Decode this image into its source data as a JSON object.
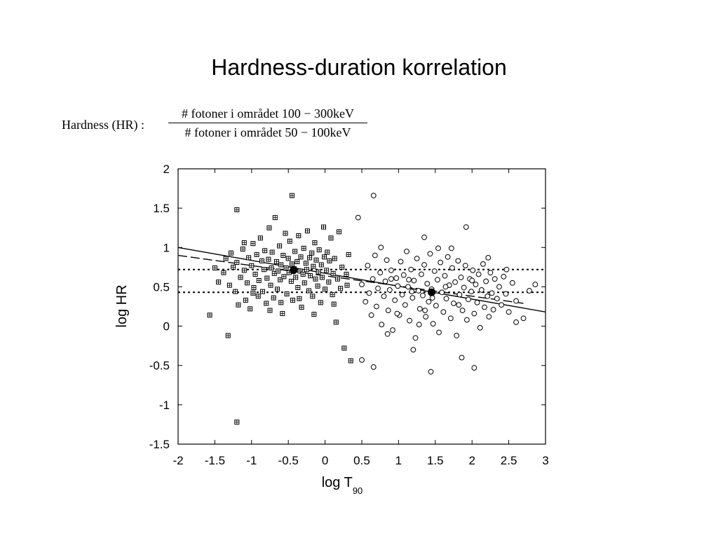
{
  "slide": {
    "title": "Hardness-duration korrelation"
  },
  "formula": {
    "label": "Hardness (HR) :",
    "numerator": "#  fotoner i området 100 − 300keV",
    "denominator": "#  fotoner i området 50 − 100keV"
  },
  "chart_data": {
    "type": "scatter",
    "title": "",
    "xlabel": "log T",
    "xlabel_subscript": "90",
    "ylabel": "log HR",
    "xlim": [
      -2,
      3
    ],
    "ylim": [
      -1.5,
      2
    ],
    "xticks": [
      -2,
      -1.5,
      -1,
      -0.5,
      0,
      0.5,
      1,
      1.5,
      2,
      2.5,
      3
    ],
    "yticks": [
      -1.5,
      -1,
      -0.5,
      0,
      0.5,
      1,
      1.5,
      2
    ],
    "xtick_labels": [
      "-2",
      "-1.5",
      "-1",
      "-0.5",
      "0",
      "0.5",
      "1",
      "1.5",
      "2",
      "2.5",
      "3"
    ],
    "ytick_labels": [
      "-1.5",
      "-1",
      "-0.5",
      "0",
      "0.5",
      "1",
      "1.5",
      "2"
    ],
    "grid": false,
    "series": [
      {
        "marker": "boxed-cross",
        "points": [
          [
            -1.57,
            0.14
          ],
          [
            -1.32,
            -0.12
          ],
          [
            -1.2,
            -1.22
          ],
          [
            -1.2,
            1.48
          ],
          [
            -0.45,
            1.66
          ],
          [
            -1.5,
            0.74
          ],
          [
            -1.45,
            0.56
          ],
          [
            -1.38,
            0.68
          ],
          [
            -1.35,
            0.86
          ],
          [
            -1.3,
            0.52
          ],
          [
            -1.28,
            0.93
          ],
          [
            -1.25,
            0.75
          ],
          [
            -1.22,
            0.44
          ],
          [
            -1.2,
            0.81
          ],
          [
            -1.18,
            0.27
          ],
          [
            -1.15,
            0.62
          ],
          [
            -1.12,
            0.98
          ],
          [
            -1.1,
            0.71
          ],
          [
            -1.08,
            0.33
          ],
          [
            -1.06,
            0.55
          ],
          [
            -1.04,
            0.87
          ],
          [
            -1.02,
            0.22
          ],
          [
            -1.0,
            0.77
          ],
          [
            -0.98,
            1.05
          ],
          [
            -0.97,
            0.49
          ],
          [
            -0.95,
            0.66
          ],
          [
            -0.93,
            0.91
          ],
          [
            -0.91,
            0.38
          ],
          [
            -0.9,
            0.58
          ],
          [
            -0.88,
            1.12
          ],
          [
            -0.86,
            0.83
          ],
          [
            -0.85,
            0.44
          ],
          [
            -0.83,
            0.72
          ],
          [
            -0.82,
            0.96
          ],
          [
            -0.8,
            0.29
          ],
          [
            -0.79,
            0.61
          ],
          [
            -0.77,
            0.85
          ],
          [
            -0.76,
            1.25
          ],
          [
            -0.74,
            0.52
          ],
          [
            -0.73,
            0.74
          ],
          [
            -0.72,
            0.94
          ],
          [
            -0.7,
            0.36
          ],
          [
            -0.69,
            0.67
          ],
          [
            -0.68,
            1.38
          ],
          [
            -0.66,
            0.82
          ],
          [
            -0.65,
            0.47
          ],
          [
            -0.64,
            0.7
          ],
          [
            -0.62,
            1.02
          ],
          [
            -0.61,
            0.59
          ],
          [
            -0.6,
            0.78
          ],
          [
            -0.58,
            0.16
          ],
          [
            -0.57,
            0.9
          ],
          [
            -0.56,
            0.63
          ],
          [
            -0.54,
            1.18
          ],
          [
            -0.53,
            0.74
          ],
          [
            -0.52,
            0.41
          ],
          [
            -0.5,
            0.86
          ],
          [
            -0.49,
            0.68
          ],
          [
            -0.48,
            1.08
          ],
          [
            -0.46,
            0.57
          ],
          [
            -0.45,
            0.79
          ],
          [
            -0.44,
            0.33
          ],
          [
            -0.42,
            0.73
          ],
          [
            -0.41,
            0.95
          ],
          [
            -0.4,
            0.62
          ],
          [
            -0.38,
            0.82
          ],
          [
            -0.37,
            0.49
          ],
          [
            -0.36,
            1.15
          ],
          [
            -0.34,
            0.7
          ],
          [
            -0.33,
            0.88
          ],
          [
            -0.32,
            0.24
          ],
          [
            -0.3,
            0.66
          ],
          [
            -0.29,
            0.99
          ],
          [
            -0.28,
            0.55
          ],
          [
            -0.26,
            0.8
          ],
          [
            -0.25,
            0.72
          ],
          [
            -0.24,
            1.21
          ],
          [
            -0.22,
            0.45
          ],
          [
            -0.21,
            0.87
          ],
          [
            -0.2,
            0.64
          ],
          [
            -0.18,
            0.93
          ],
          [
            -0.17,
            0.38
          ],
          [
            -0.16,
            0.76
          ],
          [
            -0.14,
            1.06
          ],
          [
            -0.13,
            0.6
          ],
          [
            -0.12,
            0.84
          ],
          [
            -0.1,
            0.51
          ],
          [
            -0.09,
            0.69
          ],
          [
            -0.08,
            0.97
          ],
          [
            -0.06,
            0.3
          ],
          [
            -0.05,
            0.78
          ],
          [
            -0.04,
            0.62
          ],
          [
            -0.02,
            1.26
          ],
          [
            -0.01,
            0.88
          ],
          [
            0.0,
            0.47
          ],
          [
            0.02,
            0.71
          ],
          [
            0.03,
            0.94
          ],
          [
            0.05,
            0.56
          ],
          [
            0.06,
            0.83
          ],
          [
            0.08,
            1.12
          ],
          [
            0.1,
            0.4
          ],
          [
            0.11,
            0.67
          ],
          [
            0.13,
            0.86
          ],
          [
            0.15,
            0.05
          ],
          [
            0.17,
            0.6
          ],
          [
            0.19,
            1.2
          ],
          [
            0.21,
            0.48
          ],
          [
            0.23,
            0.75
          ],
          [
            0.26,
            -0.28
          ],
          [
            0.29,
            0.66
          ],
          [
            0.32,
            0.91
          ],
          [
            0.35,
            -0.44
          ],
          [
            0.3,
            0.52
          ],
          [
            -0.98,
            0.42
          ],
          [
            -0.75,
            0.2
          ],
          [
            -0.6,
            0.3
          ],
          [
            -0.35,
            0.35
          ],
          [
            -0.15,
            0.15
          ],
          [
            0.12,
            0.28
          ],
          [
            -1.1,
            1.06
          ]
        ]
      },
      {
        "marker": "open-circle",
        "points": [
          [
            0.66,
            1.66
          ],
          [
            0.45,
            1.38
          ],
          [
            1.35,
            1.13
          ],
          [
            1.92,
            1.26
          ],
          [
            0.76,
            1.0
          ],
          [
            1.54,
            0.99
          ],
          [
            1.72,
            0.99
          ],
          [
            0.5,
            -0.43
          ],
          [
            0.66,
            -0.52
          ],
          [
            1.44,
            -0.58
          ],
          [
            2.03,
            -0.53
          ],
          [
            1.86,
            -0.4
          ],
          [
            1.2,
            -0.3
          ],
          [
            0.85,
            -0.1
          ],
          [
            2.7,
            0.1
          ],
          [
            2.6,
            0.05
          ],
          [
            2.78,
            0.45
          ],
          [
            2.86,
            0.53
          ],
          [
            2.47,
            0.72
          ],
          [
            2.22,
            0.87
          ],
          [
            0.5,
            0.53
          ],
          [
            0.55,
            0.31
          ],
          [
            0.58,
            0.77
          ],
          [
            0.6,
            0.42
          ],
          [
            0.63,
            0.14
          ],
          [
            0.65,
            0.6
          ],
          [
            0.68,
            0.9
          ],
          [
            0.7,
            0.25
          ],
          [
            0.72,
            0.48
          ],
          [
            0.75,
            0.68
          ],
          [
            0.77,
            0.02
          ],
          [
            0.8,
            0.38
          ],
          [
            0.82,
            0.57
          ],
          [
            0.84,
            0.84
          ],
          [
            0.86,
            0.2
          ],
          [
            0.88,
            0.46
          ],
          [
            0.9,
            0.71
          ],
          [
            0.92,
            -0.05
          ],
          [
            0.95,
            0.33
          ],
          [
            0.97,
            0.61
          ],
          [
            0.99,
            0.51
          ],
          [
            1.01,
            0.14
          ],
          [
            1.03,
            0.82
          ],
          [
            1.05,
            0.4
          ],
          [
            1.07,
            0.65
          ],
          [
            1.09,
            0.27
          ],
          [
            1.11,
            0.95
          ],
          [
            1.13,
            0.5
          ],
          [
            1.15,
            0.07
          ],
          [
            1.17,
            0.72
          ],
          [
            1.19,
            0.36
          ],
          [
            1.21,
            0.58
          ],
          [
            1.23,
            -0.15
          ],
          [
            1.25,
            0.86
          ],
          [
            1.27,
            0.45
          ],
          [
            1.29,
            0.22
          ],
          [
            1.31,
            0.66
          ],
          [
            1.33,
            0.39
          ],
          [
            1.35,
            0.78
          ],
          [
            1.37,
            0.12
          ],
          [
            1.39,
            0.54
          ],
          [
            1.41,
            0.31
          ],
          [
            1.43,
            0.92
          ],
          [
            1.45,
            0.47
          ],
          [
            1.47,
            0.03
          ],
          [
            1.49,
            0.7
          ],
          [
            1.51,
            0.26
          ],
          [
            1.53,
            0.59
          ],
          [
            1.55,
            -0.08
          ],
          [
            1.57,
            0.81
          ],
          [
            1.59,
            0.43
          ],
          [
            1.61,
            0.18
          ],
          [
            1.63,
            0.64
          ],
          [
            1.65,
            0.35
          ],
          [
            1.67,
            0.88
          ],
          [
            1.69,
            0.52
          ],
          [
            1.71,
            0.1
          ],
          [
            1.73,
            0.74
          ],
          [
            1.75,
            0.29
          ],
          [
            1.77,
            0.56
          ],
          [
            1.79,
            -0.12
          ],
          [
            1.81,
            0.83
          ],
          [
            1.83,
            0.4
          ],
          [
            1.85,
            0.62
          ],
          [
            1.87,
            0.2
          ],
          [
            1.89,
            0.49
          ],
          [
            1.91,
            0.77
          ],
          [
            1.93,
            0.08
          ],
          [
            1.95,
            0.34
          ],
          [
            1.97,
            0.6
          ],
          [
            1.99,
            0.44
          ],
          [
            2.01,
            0.71
          ],
          [
            2.03,
            0.16
          ],
          [
            2.05,
            0.53
          ],
          [
            2.07,
            0.3
          ],
          [
            2.09,
            0.66
          ],
          [
            2.11,
            -0.02
          ],
          [
            2.13,
            0.46
          ],
          [
            2.15,
            0.79
          ],
          [
            2.17,
            0.24
          ],
          [
            2.19,
            0.57
          ],
          [
            2.21,
            0.38
          ],
          [
            2.23,
            0.12
          ],
          [
            2.25,
            0.68
          ],
          [
            2.27,
            0.42
          ],
          [
            2.29,
            0.21
          ],
          [
            2.31,
            0.6
          ],
          [
            2.34,
            0.35
          ],
          [
            2.37,
            0.5
          ],
          [
            2.4,
            0.27
          ],
          [
            2.43,
            0.63
          ],
          [
            2.46,
            0.41
          ],
          [
            2.5,
            0.18
          ],
          [
            2.55,
            0.55
          ],
          [
            2.6,
            0.32
          ],
          [
            0.98,
            0.16
          ],
          [
            1.14,
            0.59
          ],
          [
            1.28,
            0.02
          ],
          [
            1.46,
            0.36
          ],
          [
            1.64,
            0.5
          ],
          [
            1.82,
            0.27
          ],
          [
            2.0,
            0.58
          ],
          [
            1.36,
            0.2
          ],
          [
            1.18,
            0.44
          ],
          [
            0.9,
            0.6
          ]
        ]
      },
      {
        "marker": "filled-circle",
        "points": [
          [
            -0.43,
            0.71
          ],
          [
            1.45,
            0.43
          ]
        ]
      }
    ],
    "lines": [
      {
        "style": "solid",
        "points": [
          [
            -2,
            1.0
          ],
          [
            3,
            0.18
          ]
        ]
      },
      {
        "style": "long-dash",
        "points": [
          [
            -2,
            0.9
          ],
          [
            2.7,
            0.29
          ]
        ]
      },
      {
        "style": "dotted",
        "points": [
          [
            -2,
            0.72
          ],
          [
            3,
            0.72
          ]
        ]
      },
      {
        "style": "dotted",
        "points": [
          [
            -2,
            0.43
          ],
          [
            3,
            0.43
          ]
        ]
      }
    ]
  }
}
